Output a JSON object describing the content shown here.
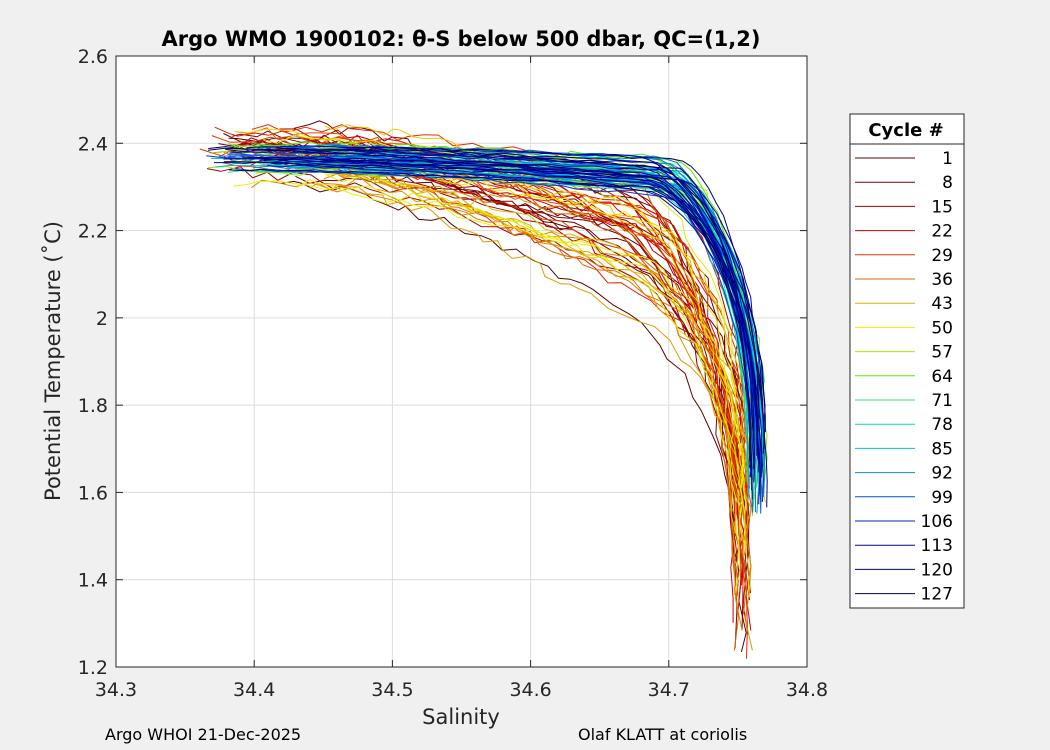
{
  "chart_data": {
    "type": "line",
    "title": "Argo WMO 1900102: θ-S below 500 dbar,  QC=(1,2)",
    "xlabel": "Salinity",
    "ylabel": "Potential Temperature (˚C)",
    "xlim": [
      34.3,
      34.8
    ],
    "ylim": [
      1.2,
      2.6
    ],
    "xticks": [
      "34.3",
      "34.4",
      "34.5",
      "34.6",
      "34.7",
      "34.8"
    ],
    "yticks": [
      "1.2",
      "1.4",
      "1.6",
      "1.8",
      "2",
      "2.2",
      "2.4",
      "2.6"
    ],
    "grid": true,
    "legend_title": "Cycle #",
    "legend_position": "outside-right",
    "cycles": [
      "1",
      "8",
      "15",
      "22",
      "29",
      "36",
      "43",
      "50",
      "57",
      "64",
      "71",
      "78",
      "85",
      "92",
      "99",
      "106",
      "113",
      "120",
      "127"
    ],
    "cycle_colors": [
      "#5a0000",
      "#7a0000",
      "#a00000",
      "#c80000",
      "#e83000",
      "#e06a00",
      "#e0b000",
      "#f0f000",
      "#a8e800",
      "#60e800",
      "#20e870",
      "#00e0b0",
      "#00c0e0",
      "#0090e0",
      "#0050e0",
      "#0020c8",
      "#0000a0",
      "#000080",
      "#000060"
    ],
    "series_model": {
      "description": "theta-S curves, each cycle estimated from the figure",
      "theta_top": 2.36,
      "theta_bottom_range": [
        1.22,
        1.72
      ],
      "salinity_shallow_range": [
        34.36,
        34.47
      ],
      "salinity_deep_range": [
        34.74,
        34.77
      ]
    }
  },
  "footer": {
    "left": "Argo WHOI 21-Dec-2025",
    "right": "Olaf KLATT at coriolis"
  }
}
